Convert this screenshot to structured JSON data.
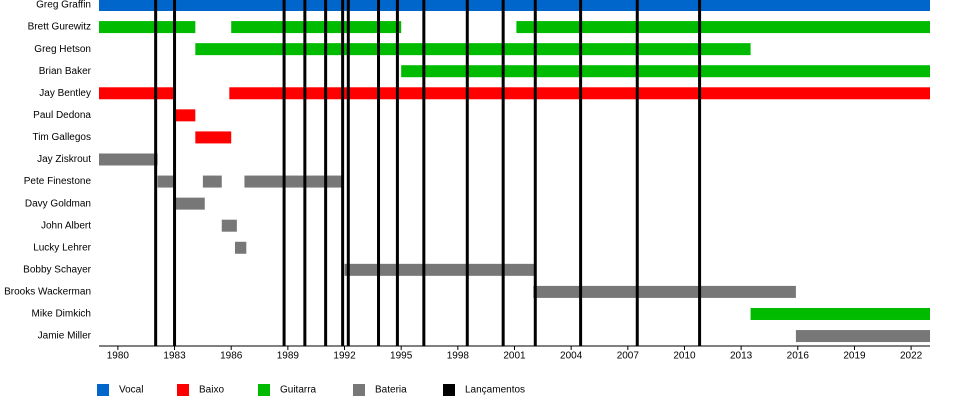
{
  "chart_data": {
    "type": "timeline",
    "categories": [
      "Greg Graffin",
      "Brett Gurewitz",
      "Greg Hetson",
      "Brian Baker",
      "Jay Bentley",
      "Paul Dedona",
      "Tim Gallegos",
      "Jay Ziskrout",
      "Pete Finestone",
      "Davy Goldman",
      "John Albert",
      "Lucky Lehrer",
      "Bobby Schayer",
      "Brooks Wackerman",
      "Mike Dimkich",
      "Jamie Miller"
    ],
    "series": [
      {
        "name": "Vocal",
        "color": "#0066cc",
        "values": [
          [
            [
              1979,
              2023
            ]
          ],
          null,
          null,
          null,
          null,
          null,
          null,
          null,
          null,
          null,
          null,
          null,
          null,
          null,
          null,
          null
        ]
      },
      {
        "name": "Baixo",
        "color": "#ff0000",
        "values": [
          null,
          null,
          null,
          null,
          [
            [
              1979,
              1983
            ],
            [
              1985.9,
              2023
            ]
          ],
          [
            [
              1983,
              1984.1
            ]
          ],
          [
            [
              1984.1,
              1986
            ]
          ],
          null,
          null,
          null,
          null,
          null,
          null,
          null,
          null,
          null
        ]
      },
      {
        "name": "Guitarra",
        "color": "#00bb00",
        "values": [
          null,
          [
            [
              1979,
              1984.1
            ],
            [
              1986,
              1995
            ],
            [
              2001.1,
              2023
            ]
          ],
          [
            [
              1984.1,
              2013.5
            ]
          ],
          [
            [
              1995,
              2023
            ]
          ],
          null,
          null,
          null,
          null,
          null,
          null,
          null,
          null,
          null,
          null,
          [
            [
              2013.5,
              2023
            ]
          ],
          null
        ]
      },
      {
        "name": "Bateria",
        "color": "#777777",
        "values": [
          null,
          null,
          null,
          null,
          null,
          null,
          null,
          [
            [
              1979,
              1982.1
            ]
          ],
          [
            [
              1982.1,
              1983
            ],
            [
              1984.5,
              1985.5
            ],
            [
              1986.7,
              1991.9
            ]
          ],
          [
            [
              1983,
              1984.6
            ]
          ],
          [
            [
              1985.5,
              1986.3
            ]
          ],
          [
            [
              1986.2,
              1986.8
            ]
          ],
          [
            [
              1992,
              2002.1
            ]
          ],
          [
            [
              2002,
              2015.9
            ]
          ],
          null,
          [
            [
              2015.9,
              2023
            ]
          ]
        ]
      }
    ],
    "events": {
      "name": "Lançamentos",
      "color": "#000000",
      "x": [
        1982,
        1983,
        1988.8,
        1989.9,
        1991,
        1991.9,
        1992.2,
        1993.8,
        1994.8,
        1996.2,
        1998.5,
        2000.4,
        2002.1,
        2004.5,
        2007.5,
        2010.8
      ]
    },
    "xlim": [
      1979,
      2023
    ],
    "xticks": [
      1980,
      1983,
      1986,
      1989,
      1992,
      1995,
      1998,
      2001,
      2004,
      2007,
      2010,
      2013,
      2016,
      2019,
      2022
    ]
  }
}
